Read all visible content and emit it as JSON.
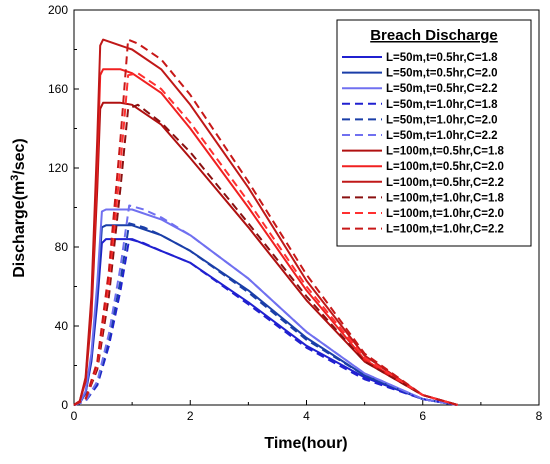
{
  "chart_data": {
    "type": "line",
    "title": "",
    "xlabel": "Time(hour)",
    "ylabel_main": "Discharge(m",
    "ylabel_sup": "3",
    "ylabel_tail": "/sec)",
    "xlim": [
      0,
      8
    ],
    "ylim": [
      0,
      200
    ],
    "xticks": [
      "0",
      "2",
      "4",
      "6",
      "8"
    ],
    "yticks": [
      "0",
      "40",
      "80",
      "120",
      "160",
      "200"
    ],
    "grid": false,
    "legend_title": "Breach Discharge",
    "legend_position": "top-right",
    "series": [
      {
        "name": "L=50m,t=0.5hr,C=1.8",
        "color": "#2020d0",
        "dash": "solid",
        "points": [
          [
            0,
            0
          ],
          [
            0.1,
            1
          ],
          [
            0.2,
            6
          ],
          [
            0.3,
            22
          ],
          [
            0.4,
            52
          ],
          [
            0.48,
            82
          ],
          [
            0.55,
            84
          ],
          [
            0.7,
            84
          ],
          [
            1.0,
            84
          ],
          [
            1.5,
            78
          ],
          [
            2,
            72
          ],
          [
            3,
            52
          ],
          [
            4,
            30
          ],
          [
            5,
            14
          ],
          [
            6,
            3
          ],
          [
            6.6,
            0
          ]
        ]
      },
      {
        "name": "L=50m,t=0.5hr,C=2.0",
        "color": "#1a3ea8",
        "dash": "solid",
        "points": [
          [
            0,
            0
          ],
          [
            0.1,
            1
          ],
          [
            0.2,
            6
          ],
          [
            0.3,
            24
          ],
          [
            0.4,
            56
          ],
          [
            0.48,
            90
          ],
          [
            0.55,
            91
          ],
          [
            0.7,
            91
          ],
          [
            1.0,
            91
          ],
          [
            1.5,
            86
          ],
          [
            2,
            78
          ],
          [
            3,
            58
          ],
          [
            4,
            34
          ],
          [
            5,
            15
          ],
          [
            6,
            3
          ],
          [
            6.6,
            0
          ]
        ]
      },
      {
        "name": "L=50m,t=0.5hr,C=2.2",
        "color": "#7070f0",
        "dash": "solid",
        "points": [
          [
            0,
            0
          ],
          [
            0.1,
            1
          ],
          [
            0.2,
            7
          ],
          [
            0.3,
            26
          ],
          [
            0.4,
            62
          ],
          [
            0.48,
            98
          ],
          [
            0.55,
            99
          ],
          [
            0.7,
            99
          ],
          [
            1.0,
            99
          ],
          [
            1.5,
            94
          ],
          [
            2,
            86
          ],
          [
            3,
            64
          ],
          [
            4,
            37
          ],
          [
            5,
            16
          ],
          [
            6,
            3
          ],
          [
            6.6,
            0
          ]
        ]
      },
      {
        "name": "L=50m,t=1.0hr,C=1.8",
        "color": "#2020d0",
        "dash": "dashed",
        "points": [
          [
            0,
            0
          ],
          [
            0.2,
            2
          ],
          [
            0.4,
            10
          ],
          [
            0.6,
            30
          ],
          [
            0.8,
            58
          ],
          [
            0.95,
            84
          ],
          [
            1.2,
            82
          ],
          [
            1.5,
            78
          ],
          [
            2,
            72
          ],
          [
            3,
            51
          ],
          [
            4,
            29
          ],
          [
            5,
            13
          ],
          [
            6,
            3
          ],
          [
            6.6,
            0
          ]
        ]
      },
      {
        "name": "L=50m,t=1.0hr,C=2.0",
        "color": "#1a3ea8",
        "dash": "dashed",
        "points": [
          [
            0,
            0
          ],
          [
            0.2,
            2
          ],
          [
            0.4,
            11
          ],
          [
            0.6,
            33
          ],
          [
            0.8,
            63
          ],
          [
            0.95,
            92
          ],
          [
            1.2,
            90
          ],
          [
            1.5,
            86
          ],
          [
            2,
            78
          ],
          [
            3,
            57
          ],
          [
            4,
            33
          ],
          [
            5,
            15
          ],
          [
            6,
            3
          ],
          [
            6.6,
            0
          ]
        ]
      },
      {
        "name": "L=50m,t=1.0hr,C=2.2",
        "color": "#7070f0",
        "dash": "dashed",
        "points": [
          [
            0,
            0
          ],
          [
            0.2,
            2
          ],
          [
            0.4,
            12
          ],
          [
            0.6,
            36
          ],
          [
            0.8,
            70
          ],
          [
            0.95,
            101
          ],
          [
            1.2,
            99
          ],
          [
            1.5,
            95
          ],
          [
            2,
            86
          ],
          [
            3,
            64
          ],
          [
            4,
            37
          ],
          [
            5,
            16
          ],
          [
            6,
            3
          ],
          [
            6.6,
            0
          ]
        ]
      },
      {
        "name": "L=100m,t=0.5hr,C=1.8",
        "color": "#b01010",
        "dash": "solid",
        "points": [
          [
            0,
            0
          ],
          [
            0.1,
            2
          ],
          [
            0.2,
            12
          ],
          [
            0.3,
            45
          ],
          [
            0.4,
            110
          ],
          [
            0.45,
            150
          ],
          [
            0.5,
            153
          ],
          [
            0.8,
            153
          ],
          [
            1.0,
            152
          ],
          [
            1.5,
            142
          ],
          [
            2,
            125
          ],
          [
            3,
            90
          ],
          [
            4,
            53
          ],
          [
            5,
            22
          ],
          [
            6,
            5
          ],
          [
            6.6,
            0
          ]
        ]
      },
      {
        "name": "L=100m,t=0.5hr,C=2.0",
        "color": "#f02020",
        "dash": "solid",
        "points": [
          [
            0,
            0
          ],
          [
            0.1,
            2
          ],
          [
            0.2,
            13
          ],
          [
            0.3,
            50
          ],
          [
            0.4,
            122
          ],
          [
            0.45,
            167
          ],
          [
            0.5,
            170
          ],
          [
            0.8,
            170
          ],
          [
            1.0,
            168
          ],
          [
            1.5,
            158
          ],
          [
            2,
            140
          ],
          [
            3,
            100
          ],
          [
            4,
            58
          ],
          [
            5,
            23
          ],
          [
            6,
            5
          ],
          [
            6.6,
            0
          ]
        ]
      },
      {
        "name": "L=100m,t=0.5hr,C=2.2",
        "color": "#c01818",
        "dash": "solid",
        "points": [
          [
            0,
            0
          ],
          [
            0.1,
            2
          ],
          [
            0.2,
            14
          ],
          [
            0.3,
            55
          ],
          [
            0.4,
            135
          ],
          [
            0.45,
            182
          ],
          [
            0.5,
            185
          ],
          [
            0.8,
            182
          ],
          [
            1.0,
            180
          ],
          [
            1.5,
            170
          ],
          [
            2,
            152
          ],
          [
            3,
            110
          ],
          [
            4,
            63
          ],
          [
            5,
            25
          ],
          [
            6,
            5
          ],
          [
            6.6,
            0
          ]
        ]
      },
      {
        "name": "L=100m,t=1.0hr,C=1.8",
        "color": "#8a1010",
        "dash": "dashed",
        "points": [
          [
            0,
            0
          ],
          [
            0.2,
            3
          ],
          [
            0.4,
            18
          ],
          [
            0.6,
            55
          ],
          [
            0.8,
            110
          ],
          [
            0.93,
            150
          ],
          [
            1.1,
            152
          ],
          [
            1.5,
            143
          ],
          [
            2,
            128
          ],
          [
            3,
            92
          ],
          [
            4,
            55
          ],
          [
            5,
            22
          ],
          [
            6,
            5
          ],
          [
            6.6,
            0
          ]
        ]
      },
      {
        "name": "L=100m,t=1.0hr,C=2.0",
        "color": "#ff3030",
        "dash": "dashed",
        "points": [
          [
            0,
            0
          ],
          [
            0.2,
            3
          ],
          [
            0.4,
            20
          ],
          [
            0.6,
            62
          ],
          [
            0.8,
            122
          ],
          [
            0.93,
            167
          ],
          [
            1.1,
            168
          ],
          [
            1.5,
            160
          ],
          [
            2,
            143
          ],
          [
            3,
            103
          ],
          [
            4,
            60
          ],
          [
            5,
            24
          ],
          [
            6,
            5
          ],
          [
            6.6,
            0
          ]
        ]
      },
      {
        "name": "L=100m,t=1.0hr,C=2.2",
        "color": "#c81818",
        "dash": "dashed",
        "points": [
          [
            0,
            0
          ],
          [
            0.2,
            3
          ],
          [
            0.4,
            22
          ],
          [
            0.6,
            68
          ],
          [
            0.8,
            135
          ],
          [
            0.93,
            185
          ],
          [
            1.1,
            183
          ],
          [
            1.5,
            175
          ],
          [
            2,
            157
          ],
          [
            3,
            113
          ],
          [
            4,
            66
          ],
          [
            5,
            26
          ],
          [
            6,
            5
          ],
          [
            6.6,
            0
          ]
        ]
      }
    ]
  }
}
